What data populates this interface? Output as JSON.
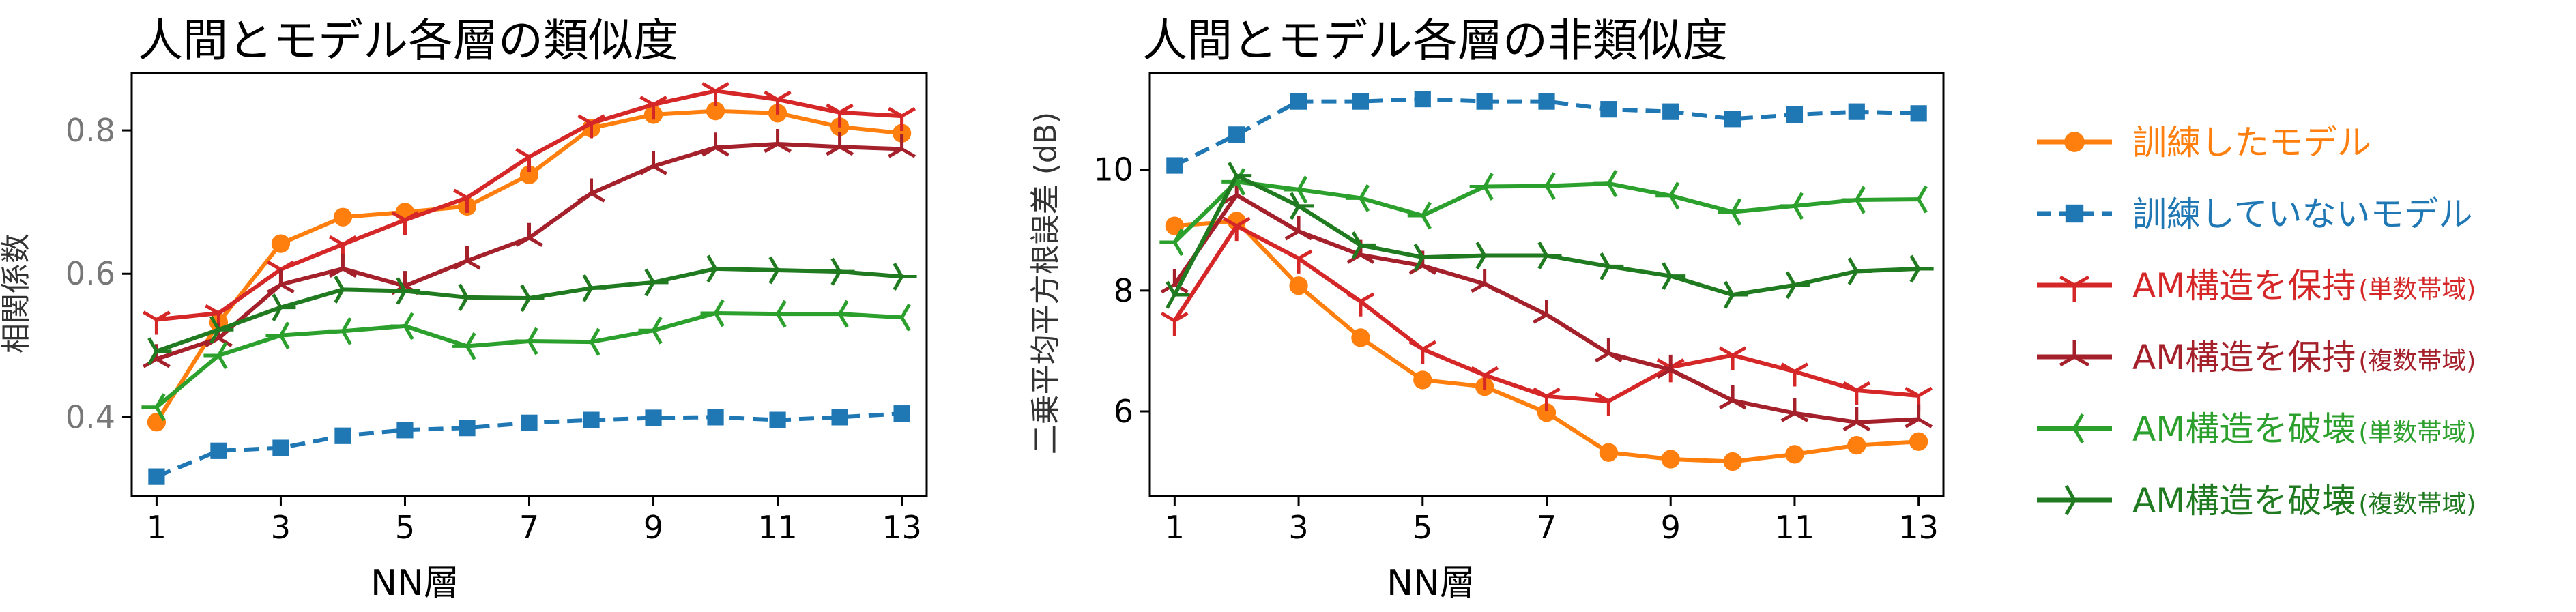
{
  "chart_data": [
    {
      "type": "line",
      "title": "人間とモデル各層の類似度",
      "xlabel": "NN層",
      "ylabel": "相関係数",
      "x": [
        1,
        2,
        3,
        4,
        5,
        6,
        7,
        8,
        9,
        10,
        11,
        12,
        13
      ],
      "xticks": [
        "1",
        "3",
        "5",
        "7",
        "9",
        "11",
        "13"
      ],
      "yticks": [
        "0.4",
        "0.6",
        "0.8"
      ],
      "xlim": [
        0.6,
        13.4
      ],
      "ylim": [
        0.29,
        0.88
      ],
      "series": [
        {
          "key": "trained",
          "values": [
            0.393,
            0.532,
            0.642,
            0.679,
            0.686,
            0.694,
            0.738,
            0.803,
            0.822,
            0.827,
            0.824,
            0.805,
            0.796
          ]
        },
        {
          "key": "untrained",
          "values": [
            0.317,
            0.353,
            0.357,
            0.374,
            0.382,
            0.385,
            0.392,
            0.396,
            0.399,
            0.4,
            0.396,
            0.4,
            0.405
          ]
        },
        {
          "key": "am_keep_single",
          "values": [
            0.536,
            0.545,
            0.606,
            0.641,
            0.675,
            0.706,
            0.763,
            0.81,
            0.836,
            0.855,
            0.843,
            0.825,
            0.82
          ]
        },
        {
          "key": "am_keep_multi",
          "values": [
            0.481,
            0.51,
            0.585,
            0.607,
            0.583,
            0.618,
            0.65,
            0.712,
            0.75,
            0.776,
            0.781,
            0.777,
            0.774
          ]
        },
        {
          "key": "am_break_single",
          "values": [
            0.414,
            0.486,
            0.514,
            0.52,
            0.527,
            0.499,
            0.506,
            0.505,
            0.521,
            0.545,
            0.544,
            0.544,
            0.539
          ]
        },
        {
          "key": "am_break_multi",
          "values": [
            0.492,
            0.522,
            0.553,
            0.578,
            0.576,
            0.567,
            0.566,
            0.58,
            0.588,
            0.607,
            0.605,
            0.603,
            0.596
          ]
        }
      ]
    },
    {
      "type": "line",
      "title": "人間とモデル各層の非類似度",
      "xlabel": "NN層",
      "ylabel": "二乗平均平方根誤差 (dB)",
      "x": [
        1,
        2,
        3,
        4,
        5,
        6,
        7,
        8,
        9,
        10,
        11,
        12,
        13
      ],
      "xticks": [
        "1",
        "3",
        "5",
        "7",
        "9",
        "11",
        "13"
      ],
      "yticks": [
        "6",
        "8",
        "10"
      ],
      "xlim": [
        0.6,
        13.4
      ],
      "ylim": [
        4.6,
        11.6
      ],
      "series": [
        {
          "key": "trained",
          "values": [
            9.07,
            9.15,
            8.08,
            7.22,
            6.52,
            6.41,
            5.98,
            5.32,
            5.21,
            5.17,
            5.29,
            5.44,
            5.5
          ]
        },
        {
          "key": "untrained",
          "values": [
            10.07,
            10.58,
            11.13,
            11.13,
            11.17,
            11.13,
            11.13,
            11.0,
            10.96,
            10.84,
            10.91,
            10.96,
            10.93
          ]
        },
        {
          "key": "am_keep_single",
          "values": [
            7.5,
            9.07,
            8.53,
            7.82,
            7.03,
            6.6,
            6.25,
            6.17,
            6.73,
            6.93,
            6.66,
            6.35,
            6.26
          ]
        },
        {
          "key": "am_keep_multi",
          "values": [
            8.1,
            9.58,
            8.98,
            8.59,
            8.41,
            8.11,
            7.6,
            6.96,
            6.69,
            6.18,
            5.97,
            5.82,
            5.87
          ]
        },
        {
          "key": "am_break_single",
          "values": [
            8.8,
            9.8,
            9.67,
            9.53,
            9.24,
            9.72,
            9.73,
            9.77,
            9.57,
            9.3,
            9.4,
            9.5,
            9.51
          ]
        },
        {
          "key": "am_break_multi",
          "values": [
            7.93,
            9.9,
            9.4,
            8.75,
            8.55,
            8.58,
            8.58,
            8.4,
            8.24,
            7.93,
            8.09,
            8.32,
            8.36
          ]
        }
      ]
    }
  ],
  "legend": {
    "placement": "right",
    "items": [
      {
        "key": "trained",
        "label": "訓練したモデル",
        "sub": "",
        "color": "#ff7f0e",
        "marker": "circle",
        "dashed": false
      },
      {
        "key": "untrained",
        "label": "訓練していないモデル",
        "sub": "",
        "color": "#1f77b4",
        "marker": "square",
        "dashed": true
      },
      {
        "key": "am_keep_single",
        "label": "AM構造を保持",
        "sub": "(単数帯域)",
        "color": "#d62728",
        "marker": "tri_down",
        "dashed": false
      },
      {
        "key": "am_keep_multi",
        "label": "AM構造を保持",
        "sub": "(複数帯域)",
        "color": "#a4202a",
        "marker": "tri_up",
        "dashed": false
      },
      {
        "key": "am_break_single",
        "label": "AM構造を破壊",
        "sub": "(単数帯域)",
        "color": "#2ca02c",
        "marker": "tri_left",
        "dashed": false
      },
      {
        "key": "am_break_multi",
        "label": "AM構造を破壊",
        "sub": "(複数帯域)",
        "color": "#207a20",
        "marker": "tri_right",
        "dashed": false
      }
    ]
  }
}
